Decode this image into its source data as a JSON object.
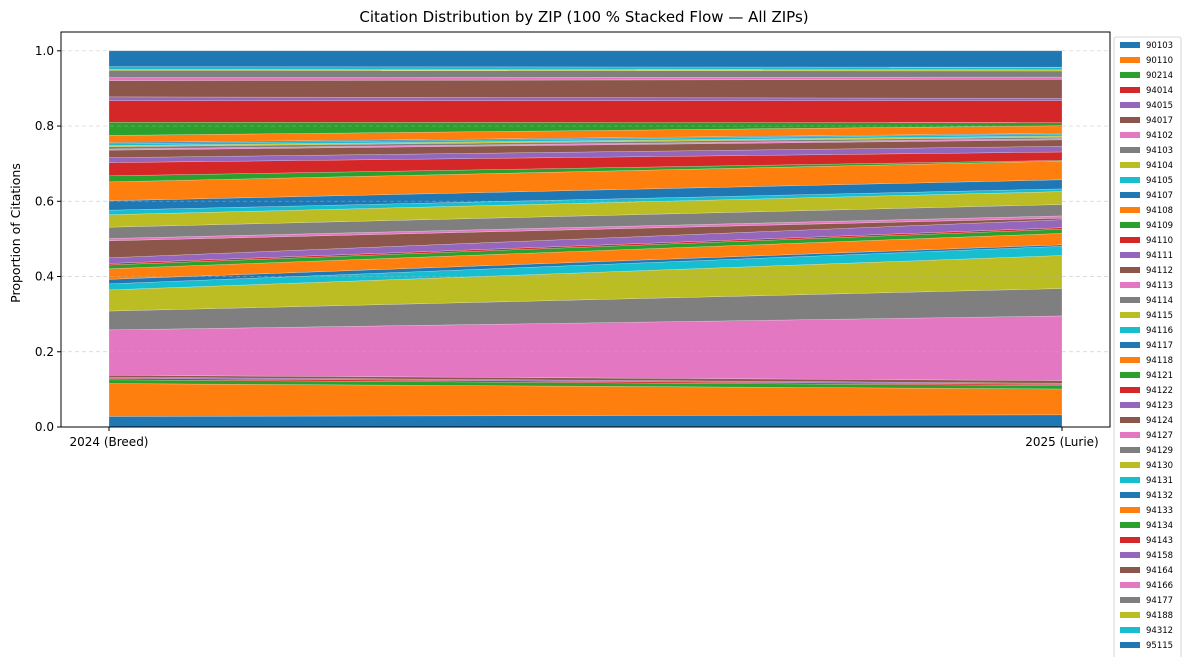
{
  "chart_data": {
    "type": "area",
    "stacked": true,
    "normalized": true,
    "title": "Citation Distribution by ZIP (100 % Stacked Flow — All ZIPs)",
    "xlabel": "",
    "ylabel": "Proportion of Citations",
    "categories": [
      "2024 (Breed)",
      "2025 (Lurie)"
    ],
    "ylim": [
      0,
      1.05
    ],
    "yticks": [
      "0.0",
      "0.2",
      "0.4",
      "0.6",
      "0.8",
      "1.0"
    ],
    "grid": "horizontal dashed",
    "legend_position": "right (outside)",
    "palette": [
      "#1f77b4",
      "#ff7f0e",
      "#2ca02c",
      "#d62728",
      "#9467bd",
      "#8c564b",
      "#e377c2",
      "#7f7f7f",
      "#bcbd22",
      "#17becf"
    ],
    "series": [
      {
        "name": "90103",
        "values": [
          0.028,
          0.032
        ]
      },
      {
        "name": "90110",
        "values": [
          0.087,
          0.068
        ]
      },
      {
        "name": "90214",
        "values": [
          0.01,
          0.009
        ]
      },
      {
        "name": "94014",
        "values": [
          0.004,
          0.003
        ]
      },
      {
        "name": "94015",
        "values": [
          0.003,
          0.003
        ]
      },
      {
        "name": "94017",
        "values": [
          0.005,
          0.007
        ]
      },
      {
        "name": "94102",
        "values": [
          0.12,
          0.17
        ]
      },
      {
        "name": "94103",
        "values": [
          0.05,
          0.072
        ]
      },
      {
        "name": "94104",
        "values": [
          0.056,
          0.087
        ]
      },
      {
        "name": "94105",
        "values": [
          0.016,
          0.024
        ]
      },
      {
        "name": "94107",
        "values": [
          0.012,
          0.004
        ]
      },
      {
        "name": "94108",
        "values": [
          0.028,
          0.03
        ]
      },
      {
        "name": "94109",
        "values": [
          0.01,
          0.011
        ]
      },
      {
        "name": "94110",
        "values": [
          0.004,
          0.004
        ]
      },
      {
        "name": "94111",
        "values": [
          0.015,
          0.021
        ]
      },
      {
        "name": "94112",
        "values": [
          0.045,
          0.004
        ]
      },
      {
        "name": "94113",
        "values": [
          0.006,
          0.006
        ]
      },
      {
        "name": "94114",
        "values": [
          0.03,
          0.03
        ]
      },
      {
        "name": "94115",
        "values": [
          0.033,
          0.034
        ]
      },
      {
        "name": "94116",
        "values": [
          0.012,
          0.007
        ]
      },
      {
        "name": "94117",
        "values": [
          0.025,
          0.024
        ]
      },
      {
        "name": "94118",
        "values": [
          0.05,
          0.049
        ]
      },
      {
        "name": "94121",
        "values": [
          0.016,
          0.002
        ]
      },
      {
        "name": "94122",
        "values": [
          0.035,
          0.022
        ]
      },
      {
        "name": "94123",
        "values": [
          0.013,
          0.015
        ]
      },
      {
        "name": "94124",
        "values": [
          0.02,
          0.017
        ]
      },
      {
        "name": "94127",
        "values": [
          0.003,
          0.003
        ]
      },
      {
        "name": "94129",
        "values": [
          0.006,
          0.004
        ]
      },
      {
        "name": "94130",
        "values": [
          0.003,
          0.003
        ]
      },
      {
        "name": "94131",
        "values": [
          0.005,
          0.005
        ]
      },
      {
        "name": "94132",
        "values": [
          0.003,
          0.002
        ]
      },
      {
        "name": "94133",
        "values": [
          0.019,
          0.02
        ]
      },
      {
        "name": "94134",
        "values": [
          0.035,
          0.008
        ]
      },
      {
        "name": "94143",
        "values": [
          0.057,
          0.058
        ]
      },
      {
        "name": "94158",
        "values": [
          0.01,
          0.006
        ]
      },
      {
        "name": "94164",
        "values": [
          0.043,
          0.05
        ]
      },
      {
        "name": "94166",
        "values": [
          0.008,
          0.006
        ]
      },
      {
        "name": "94177",
        "values": [
          0.019,
          0.016
        ]
      },
      {
        "name": "94188",
        "values": [
          0.003,
          0.003
        ]
      },
      {
        "name": "94312",
        "values": [
          0.007,
          0.007
        ]
      },
      {
        "name": "95115",
        "values": [
          0.042,
          0.043
        ]
      }
    ]
  }
}
